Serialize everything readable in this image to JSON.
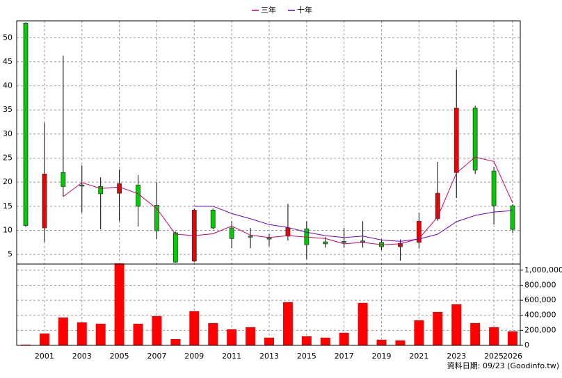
{
  "chart_data": [
    {
      "type": "candlestick",
      "open": [
        53,
        10.5,
        22,
        19.4,
        19.1,
        17.7,
        19.4,
        15.2,
        9.5,
        3.6,
        14.2,
        10.5,
        8.8,
        8.4,
        8.8,
        10.3,
        7.6,
        7.7,
        7.8,
        7.5,
        6.6,
        7.5,
        12.4,
        22,
        35.4,
        22.3,
        15.1
      ],
      "high": [
        53.2,
        32.3,
        46.3,
        23.5,
        21,
        22.6,
        21.5,
        20,
        9.7,
        14.5,
        14.5,
        11.9,
        10.5,
        9.3,
        15.5,
        11.9,
        8.6,
        10.5,
        11.9,
        8.1,
        8.1,
        13.7,
        24.2,
        43.4,
        35.9,
        23.2,
        15.4
      ],
      "low": [
        10.7,
        7.6,
        17,
        13.7,
        10.2,
        11.9,
        10.8,
        8.2,
        3.3,
        3.4,
        10.2,
        6.3,
        6.3,
        6.7,
        7.9,
        4,
        6.4,
        6.4,
        6.4,
        5.9,
        3.7,
        6.2,
        12,
        16.7,
        21.7,
        11.2,
        9.5
      ],
      "close": [
        11,
        21.7,
        19.1,
        19.2,
        17.6,
        19.7,
        15,
        9.9,
        3.4,
        14.2,
        10.5,
        8.3,
        8.7,
        8.2,
        10.5,
        7,
        7.2,
        7.5,
        7.6,
        6.6,
        7.3,
        11.9,
        17.7,
        35.4,
        22.5,
        15.1,
        10.2
      ],
      "up_color": "#ee0000",
      "down_color": "#00cc00",
      "series": [
        {
          "name": "三年",
          "color": "#cc0066",
          "values": [
            null,
            null,
            17,
            19.9,
            18.7,
            19,
            17.6,
            14.5,
            9.2,
            8.9,
            9.3,
            10.9,
            9,
            8.5,
            8.9,
            8.6,
            8.3,
            7.2,
            7.5,
            7,
            7.2,
            8.3,
            12.8,
            21.9,
            25.2,
            24.3,
            15.7
          ]
        },
        {
          "name": "十年",
          "color": "#6600cc",
          "values": [
            null,
            null,
            null,
            null,
            null,
            null,
            null,
            null,
            null,
            15,
            15,
            13.5,
            12.4,
            11.2,
            10.6,
            9.6,
            8.9,
            8.5,
            8.8,
            8,
            7.7,
            8.2,
            9.2,
            11.8,
            13.1,
            13.8,
            14.1
          ]
        }
      ],
      "ylim": [
        3,
        53.5
      ],
      "yticks": [
        5,
        10,
        15,
        20,
        25,
        30,
        35,
        40,
        45,
        50
      ],
      "grid": true
    },
    {
      "type": "bar",
      "categories": [
        null,
        "2001",
        null,
        "2003",
        null,
        "2005",
        null,
        "2007",
        null,
        "2009",
        null,
        "2011",
        null,
        "2013",
        null,
        "2015",
        null,
        "2017",
        null,
        "2019",
        null,
        "2021",
        null,
        "2023",
        null,
        "2025",
        "2026"
      ],
      "values": [
        10000,
        157000,
        370000,
        305000,
        287000,
        1090000,
        287000,
        389000,
        83000,
        454000,
        296000,
        213000,
        241000,
        102000,
        574000,
        120000,
        102000,
        167000,
        565000,
        74000,
        65000,
        333000,
        444000,
        546000,
        296000,
        241000,
        185000
      ],
      "color": "#ff0000",
      "ylim": [
        0,
        1100000
      ],
      "yticks": [
        0,
        {
          "value": 200000,
          "label": "200,000"
        },
        {
          "value": 400000,
          "label": "400,000"
        },
        {
          "value": 600000,
          "label": "600,000"
        },
        {
          "value": 800000,
          "label": "800,000"
        },
        {
          "value": 1000000,
          "label": "1,000,000"
        }
      ],
      "grid": true,
      "footer": "資料日期: 09/23 (Goodinfo.tw)"
    }
  ]
}
